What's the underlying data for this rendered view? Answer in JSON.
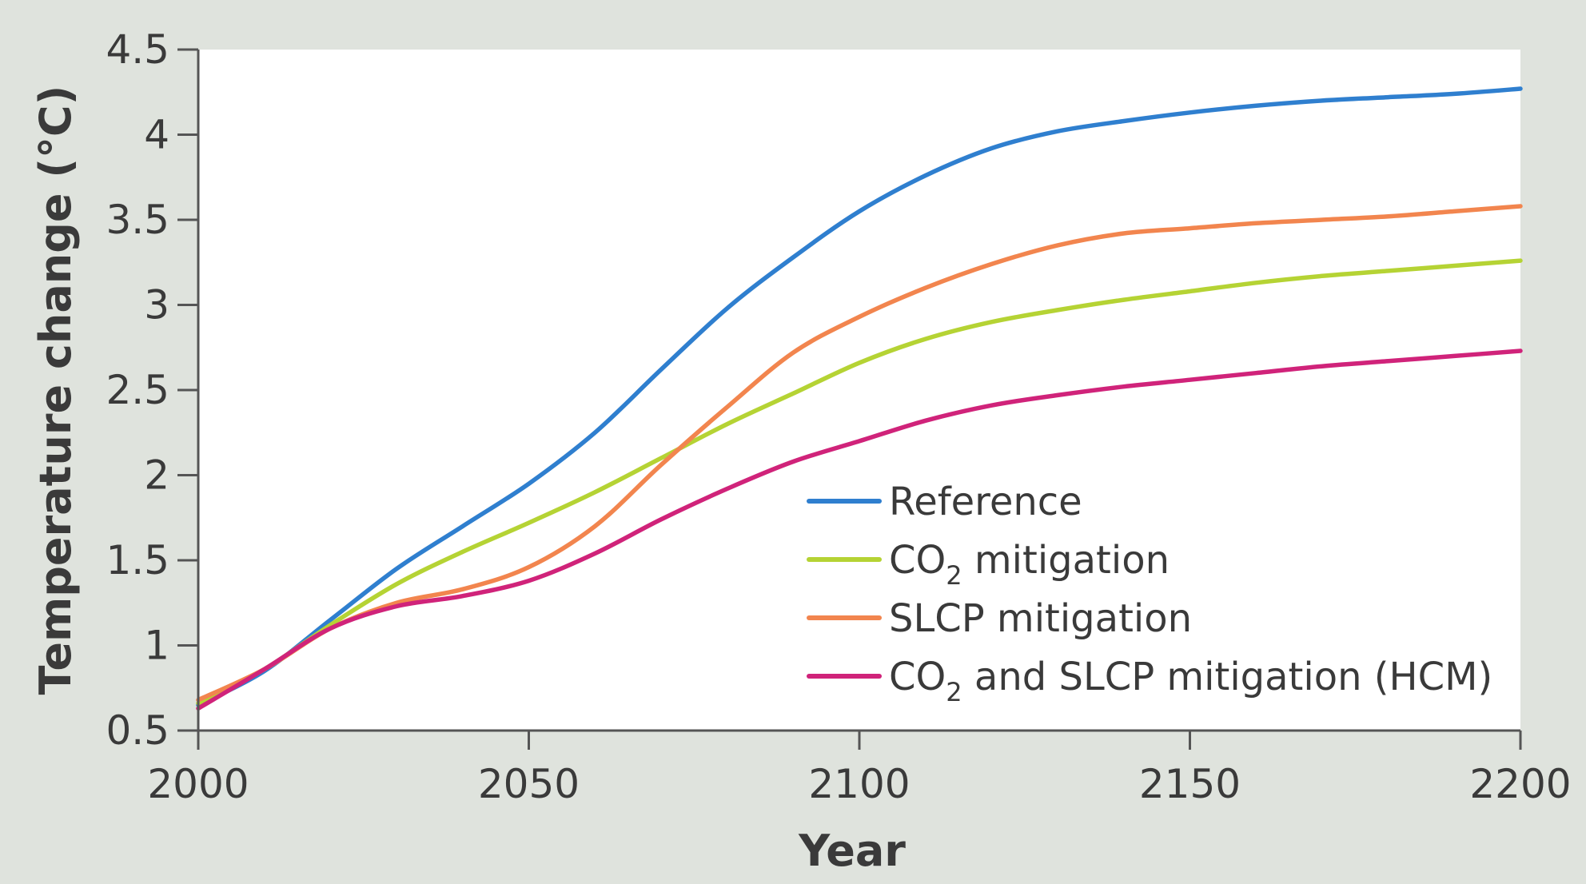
{
  "chart_data": {
    "type": "line",
    "title": "",
    "xlabel": "Year",
    "ylabel": "Temperature change (°C)",
    "xlim": [
      2000,
      2200
    ],
    "ylim": [
      0.5,
      4.5
    ],
    "xticks": [
      2000,
      2050,
      2100,
      2150,
      2200
    ],
    "xtick_labels": [
      "2000",
      "2050",
      "2100",
      "2150",
      "2200"
    ],
    "yticks": [
      0.5,
      1,
      1.5,
      2,
      2.5,
      3,
      3.5,
      4,
      4.5
    ],
    "ytick_labels": [
      "0.5",
      "1",
      "1.5",
      "2",
      "2.5",
      "3",
      "3.5",
      "4",
      "4.5"
    ],
    "grid": false,
    "legend_position": "bottom-right",
    "background_color": "#dfe3dd",
    "plot_background_color": "#ffffff",
    "series": [
      {
        "name": "Reference",
        "legend_main": "Reference",
        "legend_sub": "",
        "legend_tail": "",
        "color": "#2f7fcf",
        "x": [
          2000,
          2010,
          2020,
          2030,
          2040,
          2050,
          2060,
          2070,
          2080,
          2090,
          2100,
          2110,
          2120,
          2130,
          2140,
          2150,
          2160,
          2170,
          2180,
          2190,
          2200
        ],
        "y": [
          0.65,
          0.85,
          1.15,
          1.45,
          1.7,
          1.95,
          2.25,
          2.62,
          2.98,
          3.28,
          3.55,
          3.76,
          3.92,
          4.02,
          4.08,
          4.13,
          4.17,
          4.2,
          4.22,
          4.24,
          4.27
        ]
      },
      {
        "name": "CO2 mitigation",
        "legend_main": "CO",
        "legend_sub": "2",
        "legend_tail": " mitigation",
        "color": "#b5d334",
        "x": [
          2000,
          2010,
          2020,
          2030,
          2040,
          2050,
          2060,
          2070,
          2080,
          2090,
          2100,
          2110,
          2120,
          2130,
          2140,
          2150,
          2160,
          2170,
          2180,
          2190,
          2200
        ],
        "y": [
          0.66,
          0.86,
          1.12,
          1.36,
          1.55,
          1.72,
          1.9,
          2.1,
          2.3,
          2.48,
          2.66,
          2.8,
          2.9,
          2.97,
          3.03,
          3.08,
          3.13,
          3.17,
          3.2,
          3.23,
          3.26
        ]
      },
      {
        "name": "SLCP mitigation",
        "legend_main": "SLCP mitigation",
        "legend_sub": "",
        "legend_tail": "",
        "color": "#f2854e",
        "x": [
          2000,
          2010,
          2020,
          2030,
          2040,
          2050,
          2060,
          2070,
          2080,
          2090,
          2100,
          2110,
          2120,
          2130,
          2140,
          2150,
          2160,
          2170,
          2180,
          2190,
          2200
        ],
        "y": [
          0.68,
          0.86,
          1.1,
          1.25,
          1.33,
          1.46,
          1.7,
          2.06,
          2.4,
          2.72,
          2.93,
          3.1,
          3.24,
          3.35,
          3.42,
          3.45,
          3.48,
          3.5,
          3.52,
          3.55,
          3.58
        ]
      },
      {
        "name": "CO2 and SLCP mitigation (HCM)",
        "legend_main": "CO",
        "legend_sub": "2",
        "legend_tail": " and SLCP mitigation (HCM)",
        "color": "#d0237a",
        "x": [
          2000,
          2010,
          2020,
          2030,
          2040,
          2050,
          2060,
          2070,
          2080,
          2090,
          2100,
          2110,
          2120,
          2130,
          2140,
          2150,
          2160,
          2170,
          2180,
          2190,
          2200
        ],
        "y": [
          0.63,
          0.86,
          1.1,
          1.23,
          1.29,
          1.38,
          1.54,
          1.74,
          1.92,
          2.08,
          2.2,
          2.32,
          2.41,
          2.47,
          2.52,
          2.56,
          2.6,
          2.64,
          2.67,
          2.7,
          2.73
        ]
      }
    ]
  }
}
